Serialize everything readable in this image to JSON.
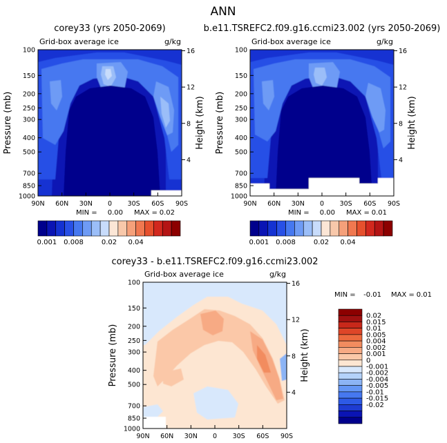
{
  "page_title": "ANN",
  "colors": {
    "seq_palette": [
      "#00008c",
      "#0a14b4",
      "#1432d2",
      "#2850e6",
      "#4678f0",
      "#6e9bf5",
      "#9bbef8",
      "#c8dcfb",
      "#fbe6d6",
      "#f8c8aa",
      "#f5a07a",
      "#f07850",
      "#e6502d",
      "#d2281e",
      "#b41414",
      "#8c0000"
    ],
    "diff_palette": [
      "#00008c",
      "#0a14b4",
      "#1e3cd2",
      "#2d5ae6",
      "#4678f0",
      "#6496f5",
      "#8cb4f5",
      "#b4d2fa",
      "#d8e8fc",
      "#fde6d2",
      "#fbc8a8",
      "#f7aa84",
      "#f28c5f",
      "#ec6a3e",
      "#de4628",
      "#c8281a",
      "#a01010",
      "#8c0000"
    ]
  },
  "chart_data": [
    {
      "type": "heatmap",
      "panel": "top-left",
      "title": "corey33 (yrs 2050-2069)",
      "subtitle_left": "Grid-box average ice",
      "subtitle_right": "g/kg",
      "ylabel": "Pressure (mb)",
      "ylabel_right": "Height (km)",
      "x_ticks": [
        "90N",
        "60N",
        "30N",
        "0",
        "30S",
        "60S",
        "90S"
      ],
      "y_ticks": [
        "100",
        "150",
        "200",
        "250",
        "300",
        "400",
        "500",
        "700",
        "850",
        "1000"
      ],
      "y_right_ticks": [
        "16",
        "12",
        "8",
        "4"
      ],
      "stats": {
        "min_label": "MIN =",
        "min": "0.00",
        "max_label": "MAX =",
        "max": "0.02"
      },
      "colorbar_labels": [
        "0.001",
        "0.008",
        "0.02",
        "0.04"
      ],
      "bottom_white": true
    },
    {
      "type": "heatmap",
      "panel": "top-right",
      "title": "b.e11.TSREFC2.f09.g16.ccmi23.002 (yrs 2050-2069)",
      "subtitle_left": "Grid-box average ice",
      "subtitle_right": "g/kg",
      "ylabel": "Pressure (mb)",
      "ylabel_right": "Height (km)",
      "x_ticks": [
        "90N",
        "60N",
        "30N",
        "0",
        "30S",
        "60S",
        "90S"
      ],
      "y_ticks": [
        "100",
        "150",
        "200",
        "250",
        "300",
        "400",
        "500",
        "700",
        "850",
        "1000"
      ],
      "y_right_ticks": [
        "16",
        "12",
        "8",
        "4"
      ],
      "stats": {
        "min_label": "MIN =",
        "min": "0.00",
        "max_label": "MAX =",
        "max": "0.01"
      },
      "colorbar_labels": [
        "0.001",
        "0.008",
        "0.02",
        "0.04"
      ],
      "bottom_white": true
    },
    {
      "type": "heatmap",
      "panel": "bottom",
      "title": "corey33 - b.e11.TSREFC2.f09.g16.ccmi23.002",
      "subtitle_left": "Grid-box average ice",
      "subtitle_right": "g/kg",
      "ylabel": "Pressure (mb)",
      "ylabel_right": "Height (km)",
      "x_ticks": [
        "90N",
        "60N",
        "30N",
        "0",
        "30S",
        "60S",
        "90S"
      ],
      "y_ticks": [
        "100",
        "150",
        "200",
        "250",
        "300",
        "400",
        "500",
        "700",
        "850",
        "1000"
      ],
      "y_right_ticks": [
        "16",
        "12",
        "8",
        "4"
      ],
      "stats": {
        "min_label": "MIN =",
        "min": "-0.01",
        "max_label": "MAX =",
        "max": "0.01"
      },
      "colorbar_labels": [
        "0.02",
        "0.015",
        "0.01",
        "0.005",
        "0.004",
        "0.002",
        "0.001",
        "0",
        "-0.001",
        "-0.002",
        "-0.004",
        "-0.005",
        "-0.01",
        "-0.015",
        "-0.02"
      ]
    }
  ]
}
